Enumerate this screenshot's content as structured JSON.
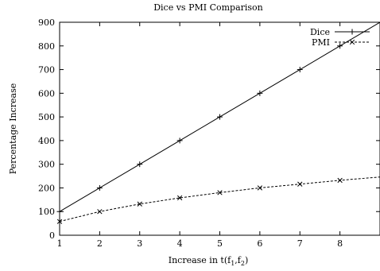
{
  "chart_data": {
    "type": "line",
    "title": "Dice vs PMI Comparison",
    "xlabel": {
      "main": "Increase in t(f",
      "sub1": "1",
      "sep": ",f",
      "sub2": "2",
      "close": ")"
    },
    "ylabel": "Percentage Increase",
    "xlim": [
      1,
      9
    ],
    "ylim": [
      0,
      900
    ],
    "x_ticks": [
      1,
      2,
      3,
      4,
      5,
      6,
      7,
      8
    ],
    "y_ticks": [
      0,
      100,
      200,
      300,
      400,
      500,
      600,
      700,
      800,
      900
    ],
    "legend_position": "top-right",
    "series": [
      {
        "name": "Dice",
        "style": "solid",
        "marker": "plus",
        "x": [
          1,
          2,
          3,
          4,
          5,
          6,
          7,
          8
        ],
        "values": [
          100,
          200,
          300,
          400,
          500,
          600,
          700,
          800
        ],
        "line_to": [
          9,
          900
        ]
      },
      {
        "name": "PMI",
        "style": "dashed",
        "marker": "cross",
        "x": [
          1,
          2,
          3,
          4,
          5,
          6,
          7,
          8
        ],
        "values": [
          58,
          100,
          132,
          158,
          180,
          200,
          216,
          232
        ],
        "line_to": [
          9,
          246
        ]
      }
    ]
  }
}
